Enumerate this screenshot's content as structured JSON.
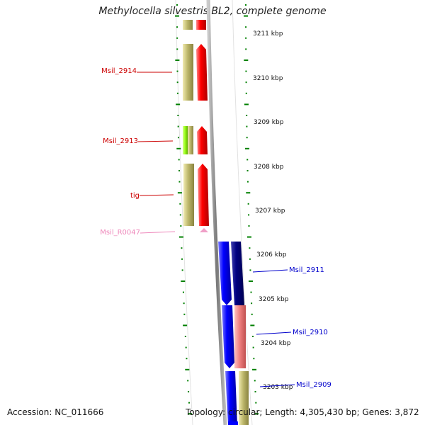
{
  "title": "Methylocella silvestris BL2, complete genome",
  "footer": {
    "accession": "Accession: NC_011666",
    "summary": "Topology: circular; Length: 4,305,430 bp; Genes: 3,872"
  },
  "ruler": [
    {
      "label": "3211 kbp"
    },
    {
      "label": "3210 kbp"
    },
    {
      "label": "3209 kbp"
    },
    {
      "label": "3208 kbp"
    },
    {
      "label": "3207 kbp"
    },
    {
      "label": "3206 kbp"
    },
    {
      "label": "3205 kbp"
    },
    {
      "label": "3204 kbp"
    },
    {
      "label": "3203 kbp"
    }
  ],
  "gene_labels": [
    {
      "text": "Msil_2914",
      "color": "#cc0000"
    },
    {
      "text": "Msil_2913",
      "color": "#cc0000"
    },
    {
      "text": "tig",
      "color": "#cc0000"
    },
    {
      "text": "Msil_R0047",
      "color": "#ee88bb"
    },
    {
      "text": "Msil_2911",
      "color": "#0000cc"
    },
    {
      "text": "Msil_2910",
      "color": "#0000cc"
    },
    {
      "text": "Msil_2909",
      "color": "#0000cc"
    }
  ],
  "colors": {
    "forward_cds": "#ff0000",
    "reverse_cds": "#0000ff",
    "dark_cds": "#000080",
    "pink_cds": "#f08080",
    "khaki_cog": "#bdb76b",
    "lime_cog": "#9aff1a",
    "rna": "#f0a0c8",
    "ticks": "#008000",
    "backbone": "#999999"
  }
}
